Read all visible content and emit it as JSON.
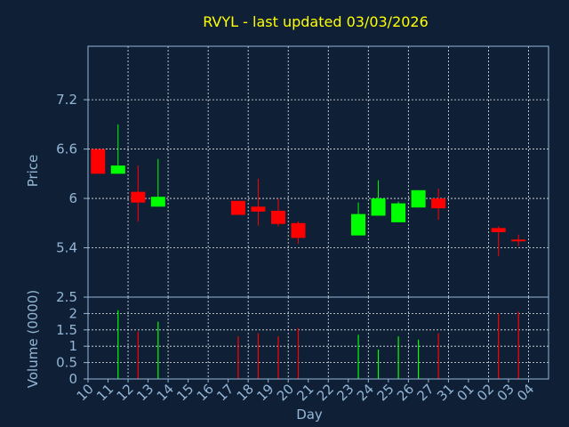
{
  "chart_data": {
    "type": "candlestick",
    "title": "RVYL - last updated 03/03/2026",
    "xlabel": "Day",
    "price_panel": {
      "ylabel": "Price",
      "ylim": [
        4.8,
        7.85
      ],
      "yticks": [
        7.2,
        6.6,
        6,
        5.4
      ],
      "ytick_labels": [
        "7.2",
        "6.6",
        "6",
        "5.4"
      ]
    },
    "volume_panel": {
      "ylabel": "Volume (0000)",
      "ylim": [
        0,
        2.5
      ],
      "yticks": [
        2.5,
        2,
        1.5,
        1,
        0.5,
        0
      ],
      "ytick_labels": [
        "2.5",
        "2",
        "1.5",
        "1",
        "0.5",
        "0"
      ]
    },
    "x_tick_labels": [
      "10",
      "11",
      "12",
      "13",
      "14",
      "15",
      "16",
      "17",
      "18",
      "19",
      "20",
      "21",
      "22",
      "23",
      "24",
      "25",
      "26",
      "27",
      "31",
      "01",
      "02",
      "03",
      "04"
    ],
    "up_color": "#00ff00",
    "down_color": "#ff0000",
    "candles": [
      {
        "x": 0,
        "open": 6.6,
        "close": 6.3,
        "high": 6.6,
        "low": 6.3,
        "volume": 0,
        "dir": "down"
      },
      {
        "x": 1,
        "open": 6.3,
        "close": 6.4,
        "high": 6.9,
        "low": 6.3,
        "volume": 2.1,
        "dir": "up"
      },
      {
        "x": 2,
        "open": 6.08,
        "close": 5.95,
        "high": 6.4,
        "low": 5.72,
        "volume": 1.45,
        "dir": "down"
      },
      {
        "x": 3,
        "open": 5.9,
        "close": 6.02,
        "high": 6.48,
        "low": 5.9,
        "volume": 1.75,
        "dir": "up"
      },
      {
        "x": 7,
        "open": 5.97,
        "close": 5.8,
        "high": 5.97,
        "low": 5.8,
        "volume": 1.3,
        "dir": "down"
      },
      {
        "x": 8,
        "open": 5.9,
        "close": 5.84,
        "high": 6.24,
        "low": 5.67,
        "volume": 1.4,
        "dir": "down"
      },
      {
        "x": 9,
        "open": 5.85,
        "close": 5.69,
        "high": 6.0,
        "low": 5.66,
        "volume": 1.3,
        "dir": "down"
      },
      {
        "x": 10,
        "open": 5.7,
        "close": 5.52,
        "high": 5.72,
        "low": 5.45,
        "volume": 1.55,
        "dir": "down"
      },
      {
        "x": 13,
        "open": 5.55,
        "close": 5.81,
        "high": 5.95,
        "low": 5.55,
        "volume": 1.35,
        "dir": "up"
      },
      {
        "x": 14,
        "open": 5.79,
        "close": 6.0,
        "high": 6.22,
        "low": 5.79,
        "volume": 0.9,
        "dir": "up"
      },
      {
        "x": 15,
        "open": 5.71,
        "close": 5.94,
        "high": 5.96,
        "low": 5.71,
        "volume": 1.3,
        "dir": "up"
      },
      {
        "x": 16,
        "open": 5.89,
        "close": 6.1,
        "high": 6.1,
        "low": 5.89,
        "volume": 1.2,
        "dir": "up"
      },
      {
        "x": 17,
        "open": 6.0,
        "close": 5.88,
        "high": 6.12,
        "low": 5.74,
        "volume": 1.4,
        "dir": "down"
      },
      {
        "x": 20,
        "open": 5.64,
        "close": 5.59,
        "high": 5.66,
        "low": 5.3,
        "volume": 2.0,
        "dir": "down"
      },
      {
        "x": 21,
        "open": 5.5,
        "close": 5.48,
        "high": 5.56,
        "low": 5.42,
        "volume": 2.05,
        "dir": "down"
      }
    ]
  }
}
